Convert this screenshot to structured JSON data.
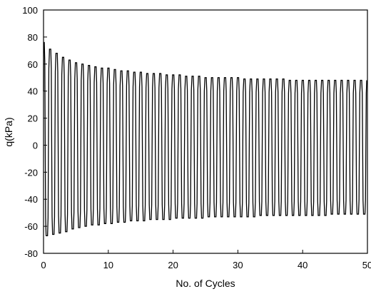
{
  "chart_data": {
    "type": "line",
    "xlabel": "No. of Cycles",
    "ylabel": "q(kPa)",
    "xlim": [
      0,
      50
    ],
    "ylim": [
      -80,
      100
    ],
    "xticks": [
      0,
      10,
      20,
      30,
      40,
      50
    ],
    "yticks": [
      -80,
      -60,
      -40,
      -20,
      0,
      20,
      40,
      60,
      80,
      100
    ],
    "xtick_labels": [
      "0",
      "10",
      "20",
      "30",
      "40",
      "50"
    ],
    "ytick_labels": [
      "-80",
      "-60",
      "-40",
      "-20",
      "0",
      "20",
      "40",
      "60",
      "80",
      "100"
    ],
    "grid": false,
    "legend": "none",
    "series_color": "#000000",
    "series": [
      {
        "cycles": [
          0,
          1,
          2,
          3,
          4,
          5,
          6,
          7,
          8,
          9,
          10,
          11,
          12,
          13,
          14,
          15,
          16,
          17,
          18,
          19,
          20,
          21,
          22,
          23,
          24,
          25,
          26,
          27,
          28,
          29,
          30,
          31,
          32,
          33,
          34,
          35,
          36,
          37,
          38,
          39,
          40,
          41,
          42,
          43,
          44,
          45,
          46,
          47,
          48,
          49,
          50
        ],
        "peak_q": [
          76,
          71,
          68,
          65,
          63,
          61,
          60,
          59,
          58,
          57,
          57,
          56,
          55,
          55,
          54,
          54,
          53,
          53,
          53,
          52,
          52,
          52,
          51,
          51,
          51,
          50,
          50,
          50,
          50,
          50,
          50,
          49,
          49,
          49,
          49,
          49,
          49,
          49,
          48,
          48,
          48,
          48,
          48,
          48,
          48,
          48,
          48,
          48,
          48,
          48,
          48
        ],
        "trough_q": [
          -67,
          -66,
          -65,
          -64,
          -62,
          -61,
          -60,
          -59,
          -59,
          -58,
          -58,
          -57,
          -57,
          -56,
          -56,
          -56,
          -55,
          -55,
          -55,
          -55,
          -54,
          -54,
          -54,
          -54,
          -54,
          -53,
          -53,
          -53,
          -53,
          -53,
          -53,
          -53,
          -53,
          -52,
          -52,
          -52,
          -52,
          -52,
          -52,
          -52,
          -52,
          -52,
          -52,
          -52,
          -51,
          -51,
          -51,
          -51,
          -51,
          -51,
          -51
        ]
      }
    ]
  }
}
